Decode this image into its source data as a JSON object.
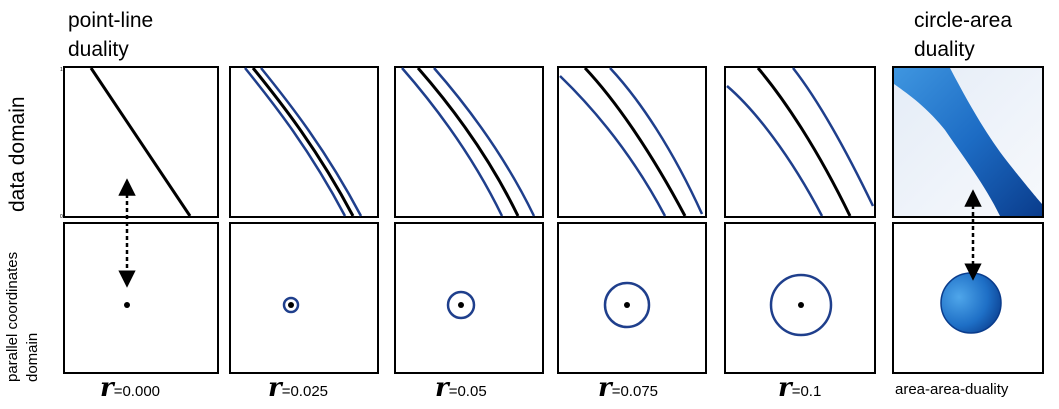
{
  "titles": {
    "left": [
      "point-line",
      "duality"
    ],
    "right": [
      "circle-area",
      "duality"
    ]
  },
  "axes": {
    "top_row_label": "data domain",
    "bottom_row_label": [
      "parallel coordinates",
      "domain"
    ],
    "tick_top": "1",
    "tick_bottom": "0"
  },
  "radius_symbol": "r",
  "columns": [
    {
      "radius": 0.0,
      "radius_text": "=0.000"
    },
    {
      "radius": 0.025,
      "radius_text": "=0.025"
    },
    {
      "radius": 0.05,
      "radius_text": "=0.05"
    },
    {
      "radius": 0.075,
      "radius_text": "=0.075"
    },
    {
      "radius": 0.1,
      "radius_text": "=0.1"
    }
  ],
  "last_column_label": "area-area-duality",
  "colors": {
    "line": "#000000",
    "envelope": "#1f3f8c",
    "area_dark": "#0a3f8f",
    "area_light": "#4aa0e6",
    "frame": "#000000"
  }
}
